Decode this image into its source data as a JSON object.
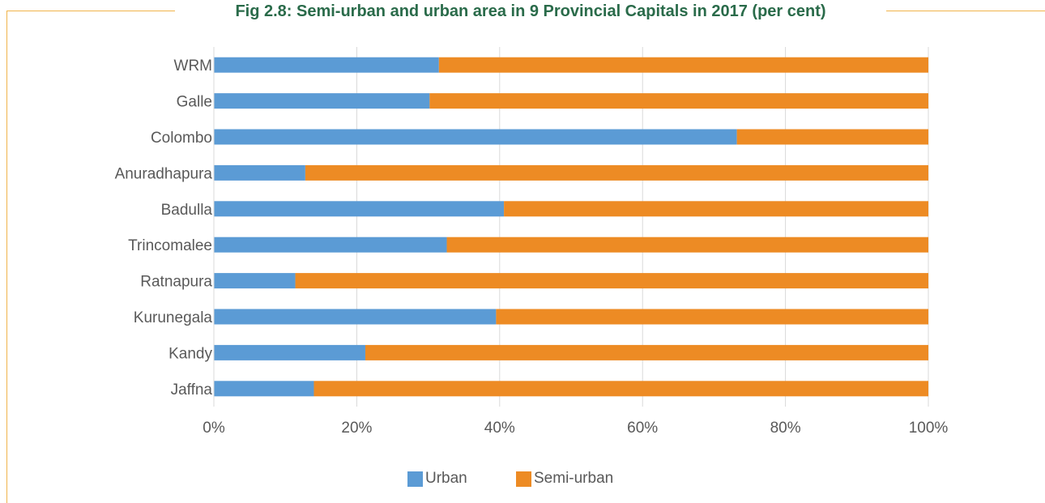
{
  "chart_data": {
    "type": "bar",
    "orientation": "horizontal",
    "stacked": true,
    "title": "Fig 2.8: Semi-urban and urban area in 9 Provincial Capitals in 2017 (per cent)",
    "categories": [
      "WRM",
      "Galle",
      "Colombo",
      "Anuradhapura",
      "Badulla",
      "Trincomalee",
      "Ratnapura",
      "Kurunegala",
      "Kandy",
      "Jaffna"
    ],
    "series": [
      {
        "name": "Urban",
        "color": "#5b9bd5",
        "values": [
          31.5,
          30.2,
          73.2,
          12.8,
          40.6,
          32.6,
          11.4,
          39.5,
          21.2,
          14.0
        ]
      },
      {
        "name": "Semi-urban",
        "color": "#ed8b24",
        "values": [
          68.5,
          69.8,
          26.8,
          87.2,
          59.4,
          67.4,
          88.6,
          60.5,
          78.8,
          86.0
        ]
      }
    ],
    "xticks": [
      "0%",
      "20%",
      "40%",
      "60%",
      "80%",
      "100%"
    ],
    "xlim": [
      0,
      100
    ],
    "grid": true,
    "legend_position": "bottom"
  }
}
